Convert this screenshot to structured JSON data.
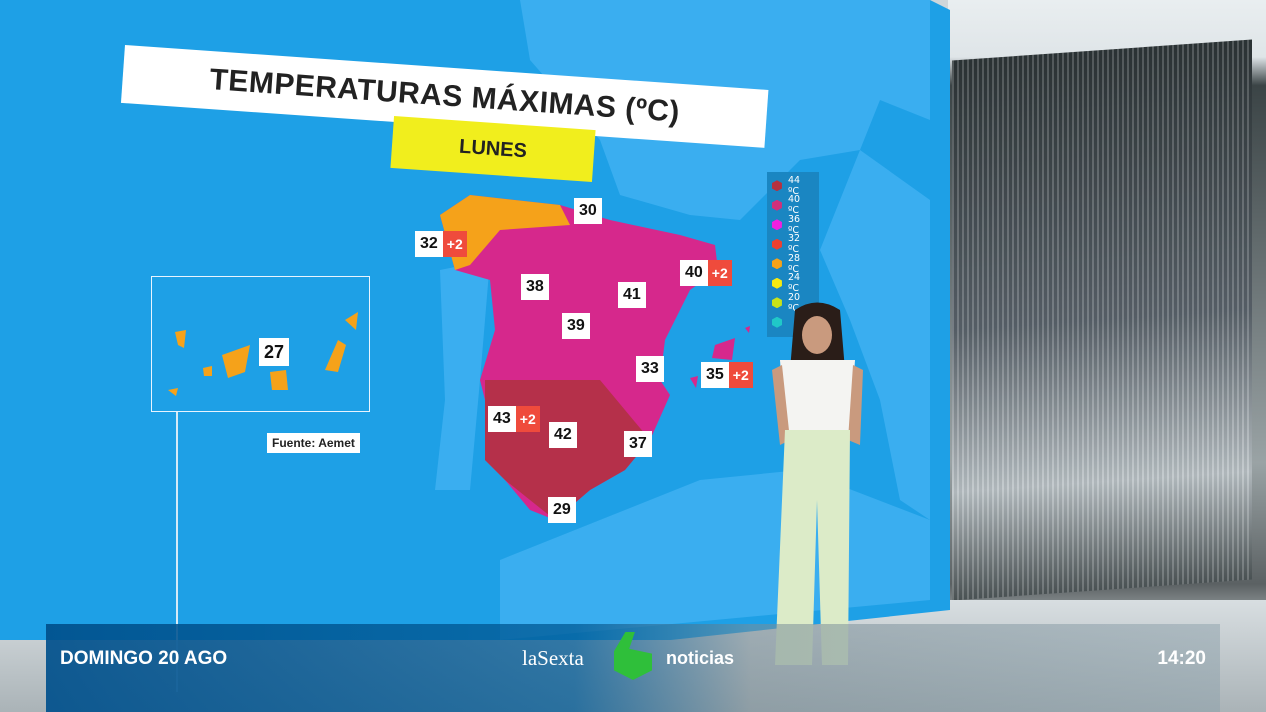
{
  "map": {
    "title": "TEMPERATURAS MÁXIMAS (ºC)",
    "day": "LUNES",
    "source": "Fuente: Aemet",
    "labels": [
      {
        "value": "30",
        "delta": ""
      },
      {
        "value": "32",
        "delta": "+2"
      },
      {
        "value": "38",
        "delta": ""
      },
      {
        "value": "41",
        "delta": ""
      },
      {
        "value": "40",
        "delta": "+2"
      },
      {
        "value": "39",
        "delta": ""
      },
      {
        "value": "33",
        "delta": ""
      },
      {
        "value": "35",
        "delta": "+2"
      },
      {
        "value": "43",
        "delta": "+2"
      },
      {
        "value": "42",
        "delta": ""
      },
      {
        "value": "37",
        "delta": ""
      },
      {
        "value": "29",
        "delta": ""
      },
      {
        "value": "27",
        "delta": ""
      }
    ],
    "legend": [
      {
        "label": "44 ºC",
        "color": "#b5303f"
      },
      {
        "label": "40 ºC",
        "color": "#d0307a"
      },
      {
        "label": "36 ºC",
        "color": "#f020e0"
      },
      {
        "label": "32 ºC",
        "color": "#f04030"
      },
      {
        "label": "28 ºC",
        "color": "#f5a21a"
      },
      {
        "label": "24 ºC",
        "color": "#f5ea10"
      },
      {
        "label": "20 ºC",
        "color": "#c8e21a"
      },
      {
        "label": "",
        "color": "#20c8c8"
      }
    ]
  },
  "ticker": {
    "date": "DOMINGO 20 AGO",
    "brand": "laSexta",
    "program": "noticias",
    "time": "14:20"
  }
}
